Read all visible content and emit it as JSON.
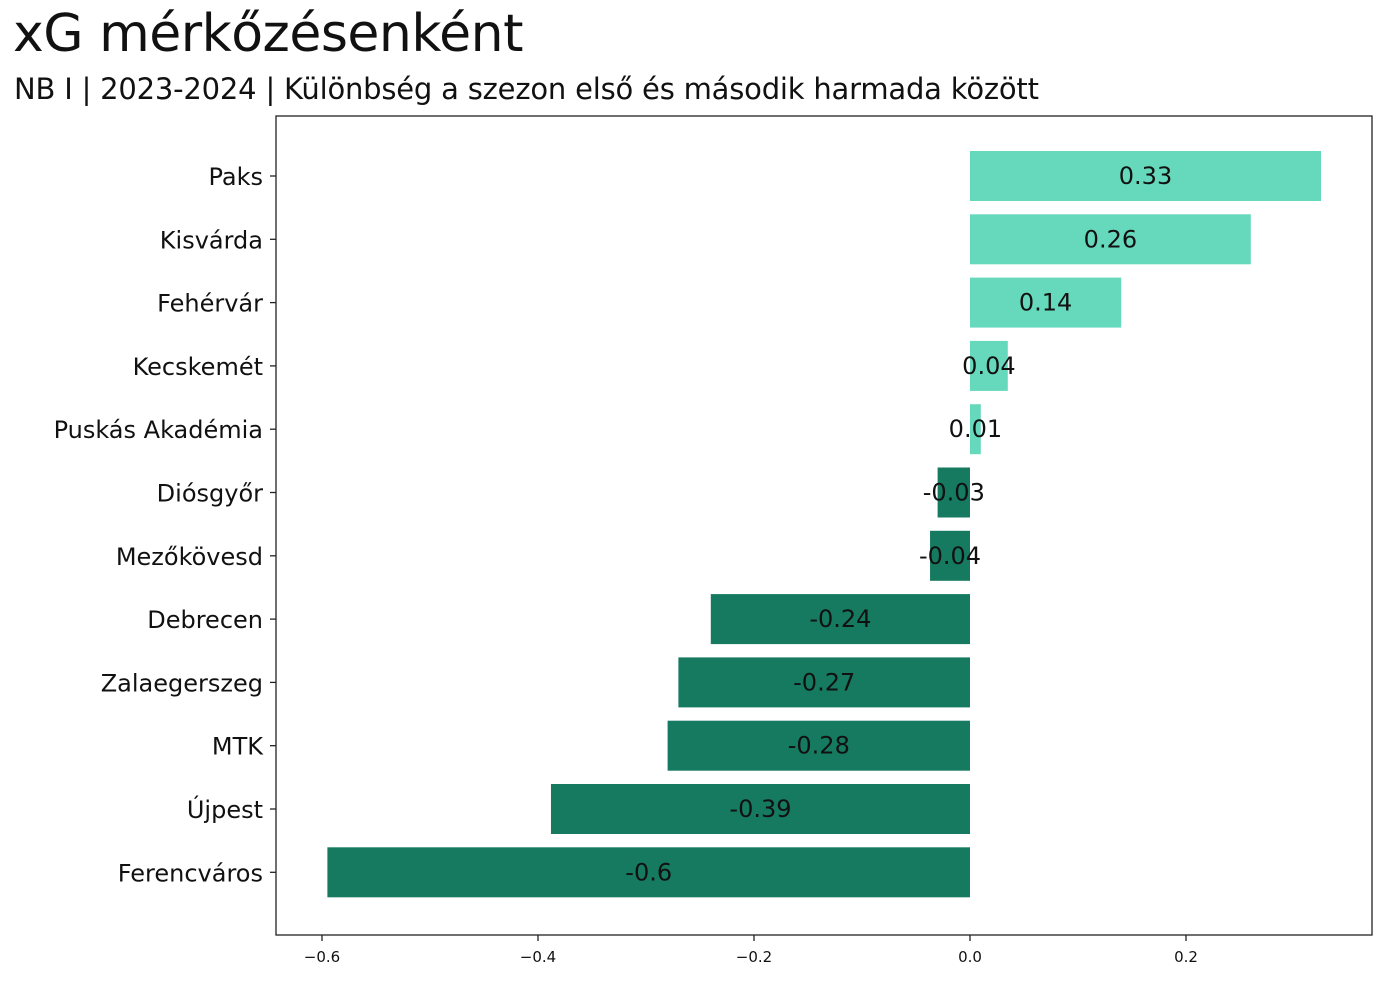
{
  "title": "xG mérkőzésenként",
  "subtitle": "NB I | 2023-2024 | Különbség a szezon első és második harmada között",
  "chart_data": {
    "type": "bar",
    "orientation": "horizontal",
    "categories": [
      "Paks",
      "Kisvárda",
      "Fehérvár",
      "Kecskemét",
      "Puskás Akadémia",
      "Diósgyőr",
      "Mezőkövesd",
      "Debrecen",
      "Zalaegerszeg",
      "MTK",
      "Újpest",
      "Ferencváros"
    ],
    "values": [
      0.325,
      0.26,
      0.14,
      0.035,
      0.01,
      -0.03,
      -0.037,
      -0.24,
      -0.27,
      -0.28,
      -0.388,
      -0.595
    ],
    "data_labels": [
      "0.33",
      "0.26",
      "0.14",
      "0.04",
      "0.01",
      "-0.03",
      "-0.04",
      "-0.24",
      "-0.27",
      "-0.28",
      "-0.39",
      "-0.6"
    ],
    "xlim": [
      -0.6,
      0.35
    ],
    "xticks": [
      -0.6,
      -0.4,
      -0.2,
      0.0,
      0.2
    ],
    "xtick_labels": [
      "−0.6",
      "−0.4",
      "−0.2",
      "0.0",
      "0.2"
    ],
    "xlabel": "",
    "ylabel": "",
    "grid": false,
    "colors": {
      "positive": "#66d9bd",
      "negative": "#167a60",
      "axis": "#222222"
    }
  }
}
